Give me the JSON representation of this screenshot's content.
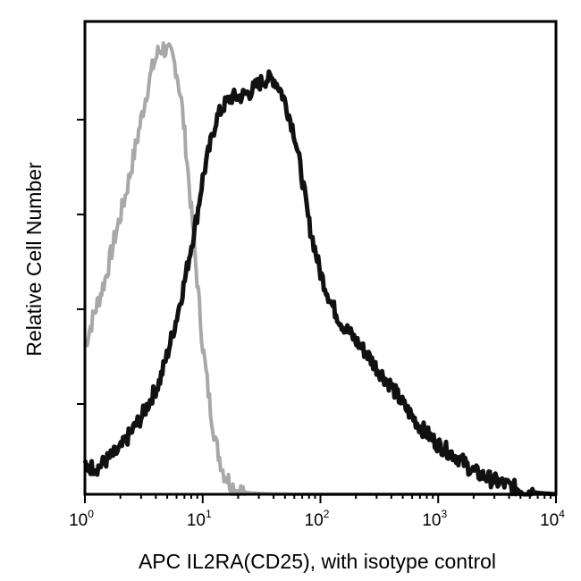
{
  "chart_data": {
    "type": "line",
    "title": "",
    "xlabel": "APC IL2RA(CD25), with isotype control",
    "ylabel": "Relative Cell Number",
    "xscale": "log",
    "xlim": [
      1,
      10000
    ],
    "ylim": [
      0,
      100
    ],
    "x_ticks": [
      {
        "base": "10",
        "exp": "0",
        "value": 1
      },
      {
        "base": "10",
        "exp": "1",
        "value": 10
      },
      {
        "base": "10",
        "exp": "2",
        "value": 100
      },
      {
        "base": "10",
        "exp": "3",
        "value": 1000
      },
      {
        "base": "10",
        "exp": "4",
        "value": 10000
      }
    ],
    "y_ticks_unlabeled": [
      20,
      41,
      62,
      83
    ],
    "legend": "none",
    "grid": false,
    "series": [
      {
        "role": "isotype-control",
        "color": "#a8a8a8",
        "x": [
          1.0,
          1.2,
          1.5,
          1.8,
          2.2,
          2.6,
          3.0,
          3.4,
          3.8,
          4.2,
          4.6,
          5.0,
          5.5,
          6.0,
          6.6,
          7.2,
          8.0,
          9.0,
          10.0,
          11.5,
          13.0,
          15.0,
          17.5,
          20.0,
          25.0,
          35.0,
          60.0,
          100.0,
          10000.0
        ],
        "y": [
          33,
          40,
          48,
          57,
          66,
          75,
          83,
          90,
          95,
          98,
          99,
          98,
          97,
          94,
          87,
          77,
          63,
          47,
          33,
          20,
          11,
          5,
          2,
          0.8,
          0.3,
          0.1,
          0,
          0,
          0
        ]
      },
      {
        "role": "IL2RA-CD25",
        "color": "#111111",
        "x": [
          1.0,
          1.3,
          1.6,
          2.0,
          2.5,
          3.0,
          3.6,
          4.3,
          5.0,
          6.0,
          7.0,
          8.0,
          9.0,
          10.0,
          11.5,
          13.0,
          15.0,
          17.5,
          20.0,
          25.0,
          30.0,
          35.0,
          40.0,
          45.0,
          50.0,
          60.0,
          70.0,
          80.0,
          100.0,
          125.0,
          150.0,
          200.0,
          250.0,
          300.0,
          400.0,
          500.0,
          700.0,
          1000.0,
          1500.0,
          2000.0,
          3000.0,
          5000.0,
          7000.0,
          10000.0
        ],
        "y": [
          6,
          6,
          8,
          10,
          14,
          17,
          21,
          25,
          31,
          39,
          47,
          55,
          62,
          70,
          77,
          83,
          86,
          88,
          88,
          89,
          91,
          92,
          92,
          90,
          87,
          80,
          70,
          60,
          49,
          42,
          38,
          34,
          31,
          28,
          24,
          20,
          15,
          11,
          8,
          5,
          3,
          1,
          0.3,
          0
        ]
      }
    ]
  }
}
